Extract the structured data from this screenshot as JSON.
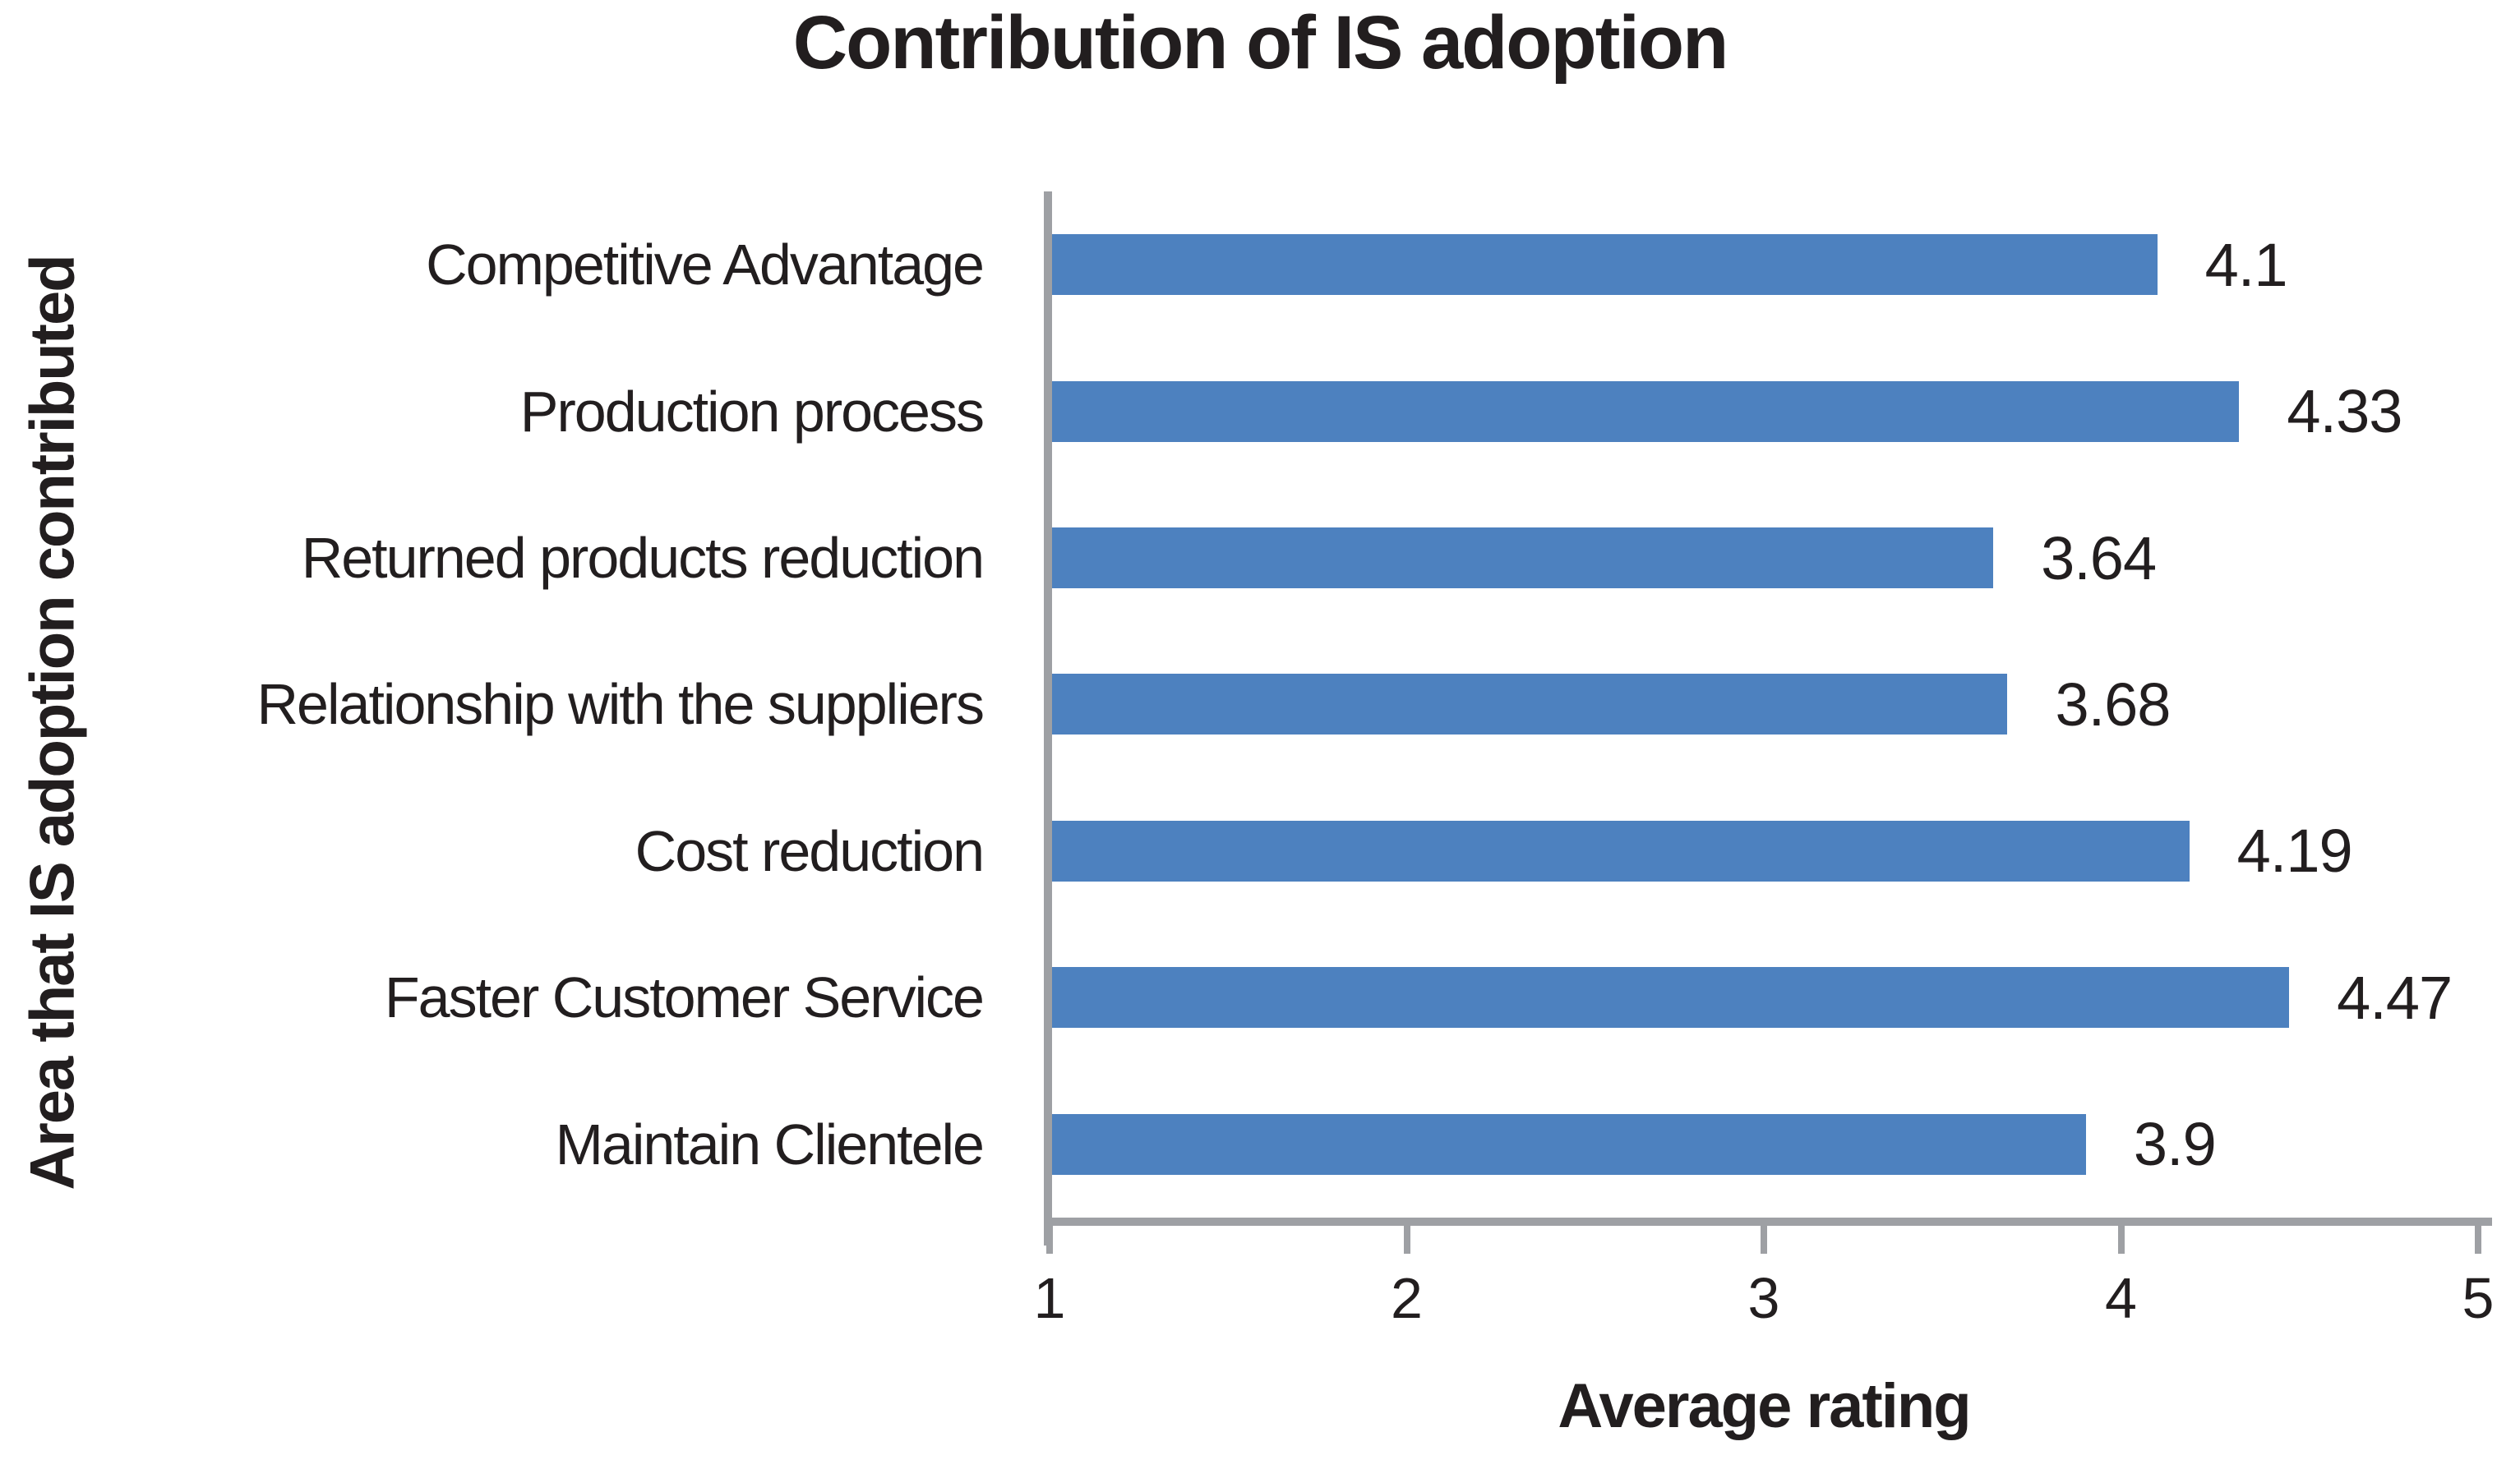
{
  "chart_data": {
    "type": "bar",
    "orientation": "horizontal",
    "title": "Contribution of IS adoption",
    "xlabel": "Average rating",
    "ylabel": "Area that IS adoption contributed",
    "categories": [
      "Competitive Advantage",
      "Production process",
      "Returned products reduction",
      "Relationship with the suppliers",
      "Cost reduction",
      "Faster Customer Service",
      "Maintain Clientele"
    ],
    "values": [
      4.1,
      4.33,
      3.64,
      3.68,
      4.19,
      4.47,
      3.9
    ],
    "x_ticks": [
      1,
      2,
      3,
      4,
      5
    ],
    "xlim": [
      1,
      5
    ],
    "grid": "off",
    "legend": "none",
    "data_labels": "outside-end",
    "bar_color": "#4d81bf",
    "axis_color": "#9ea0a4",
    "text_color": "#221e1f"
  }
}
